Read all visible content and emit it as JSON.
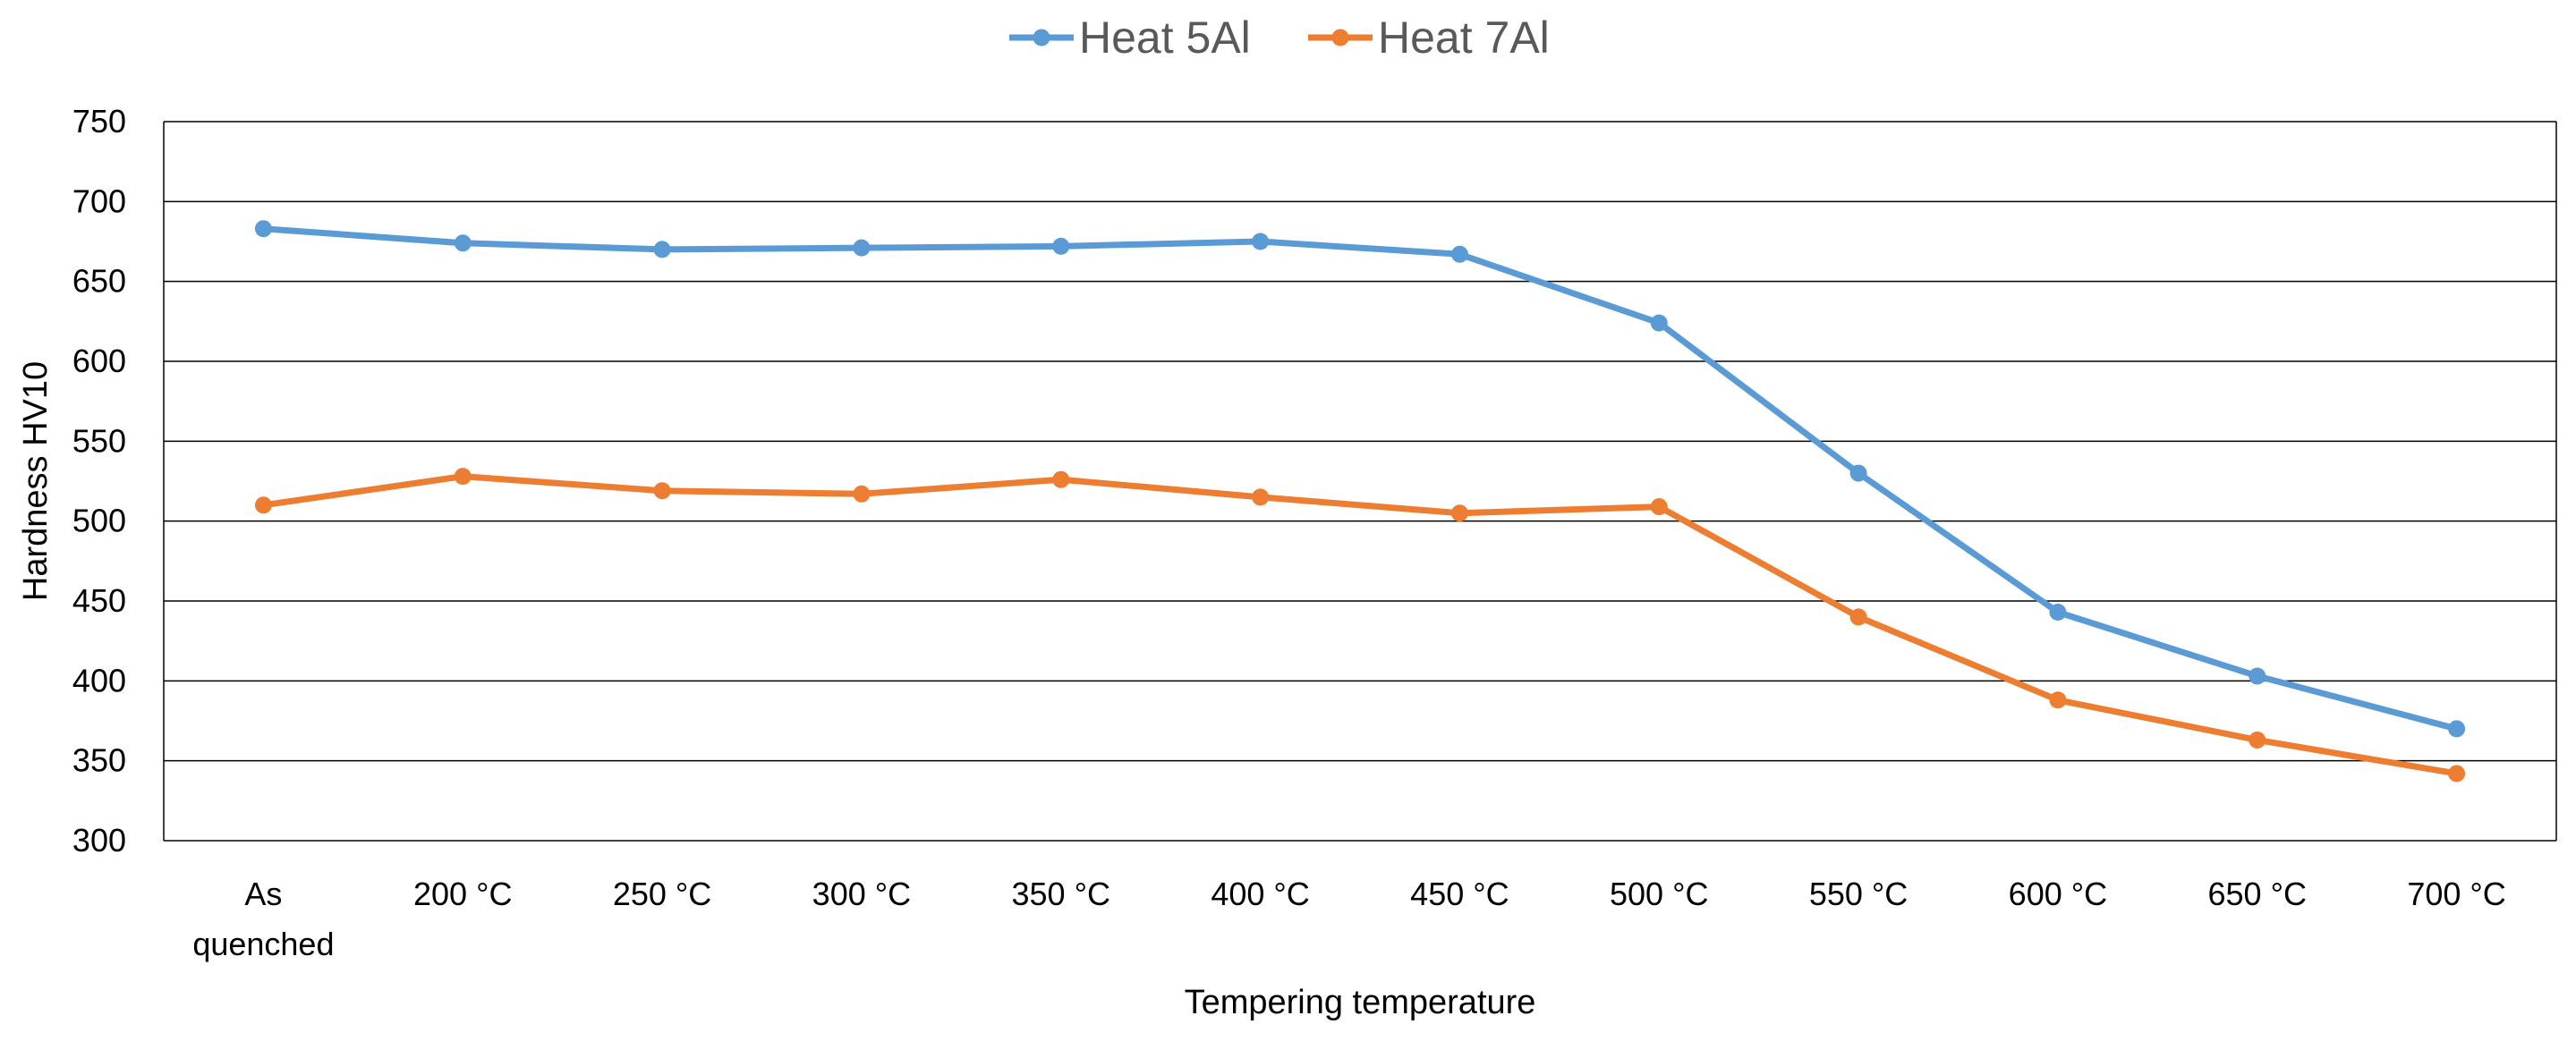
{
  "chart_data": {
    "type": "line",
    "title": "",
    "xlabel": "Tempering temperature",
    "ylabel": "Hardness HV10",
    "ylim": [
      300,
      750
    ],
    "ytick_step": 50,
    "grid": true,
    "legend_position": "top-center",
    "categories": [
      [
        "As",
        "quenched"
      ],
      [
        "200 °C"
      ],
      [
        "250 °C"
      ],
      [
        "300 °C"
      ],
      [
        "350 °C"
      ],
      [
        "400 °C"
      ],
      [
        "450 °C"
      ],
      [
        "500 °C"
      ],
      [
        "550 °C"
      ],
      [
        "600 °C"
      ],
      [
        "650 °C"
      ],
      [
        "700 °C"
      ]
    ],
    "series": [
      {
        "name": "Heat 5Al",
        "color": "#5B9BD5",
        "values": [
          683,
          674,
          670,
          671,
          672,
          675,
          667,
          624,
          530,
          443,
          403,
          370
        ]
      },
      {
        "name": "Heat 7Al",
        "color": "#ED7D31",
        "values": [
          510,
          528,
          519,
          517,
          526,
          515,
          505,
          509,
          440,
          388,
          363,
          342
        ]
      }
    ]
  }
}
